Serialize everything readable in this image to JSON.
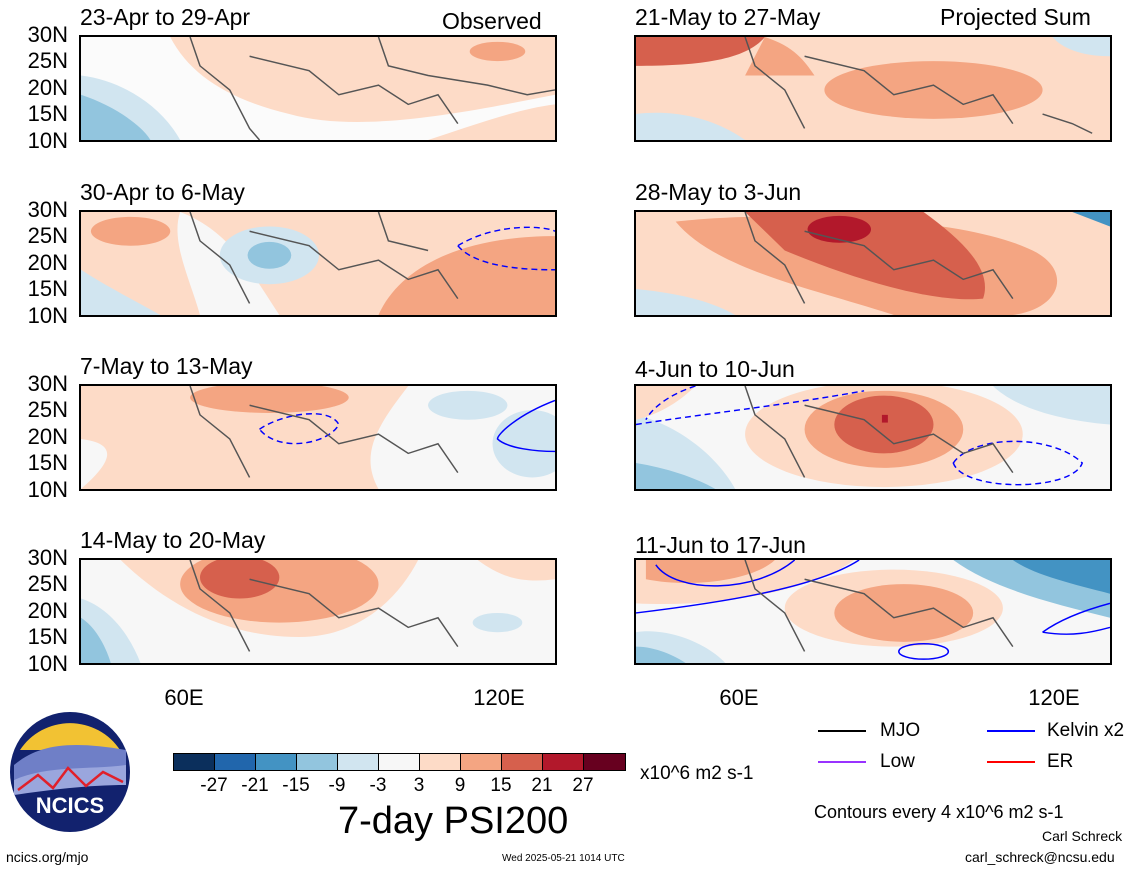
{
  "header": {
    "left_label": "Observed",
    "right_label": "Projected Sum"
  },
  "panels": [
    {
      "id": "obs1",
      "title": "23-Apr to 29-Apr"
    },
    {
      "id": "obs2",
      "title": "30-Apr to 6-May"
    },
    {
      "id": "obs3",
      "title": "7-May to 13-May"
    },
    {
      "id": "obs4",
      "title": "14-May to 20-May"
    },
    {
      "id": "proj1",
      "title": "21-May to 27-May"
    },
    {
      "id": "proj2",
      "title": "28-May to 3-Jun"
    },
    {
      "id": "proj3",
      "title": "4-Jun to 10-Jun"
    },
    {
      "id": "proj4",
      "title": "11-Jun to 17-Jun"
    }
  ],
  "lat_labels": [
    "30N",
    "25N",
    "20N",
    "15N",
    "10N"
  ],
  "lon_labels": [
    "60E",
    "120E"
  ],
  "colorbar": {
    "ticks": [
      "-27",
      "-21",
      "-15",
      "-9",
      "-3",
      "3",
      "9",
      "15",
      "21",
      "27"
    ],
    "units": "x10^6 m2 s-1",
    "colors": [
      "#0b2f5c",
      "#2166ac",
      "#4393c3",
      "#92c5de",
      "#d1e5f0",
      "#f7f7f7",
      "#fddbc7",
      "#f4a582",
      "#d6604d",
      "#b2182b",
      "#67001f"
    ]
  },
  "main_title": "7-day PSI200",
  "legend": {
    "items": [
      {
        "label": "MJO",
        "color": "#000000"
      },
      {
        "label": "Kelvin x2",
        "color": "#0000ff"
      },
      {
        "label": "Low",
        "color": "#9933ff"
      },
      {
        "label": "ER",
        "color": "#ff0000"
      }
    ],
    "contour_note": "Contours every 4 x10^6 m2 s-1"
  },
  "logo": {
    "text": "NCICS"
  },
  "footer": {
    "url": "ncics.org/mjo",
    "timestamp": "Wed 2025-05-21 1014 UTC",
    "author": "Carl Schreck",
    "email": "carl_schreck@ncsu.edu"
  }
}
